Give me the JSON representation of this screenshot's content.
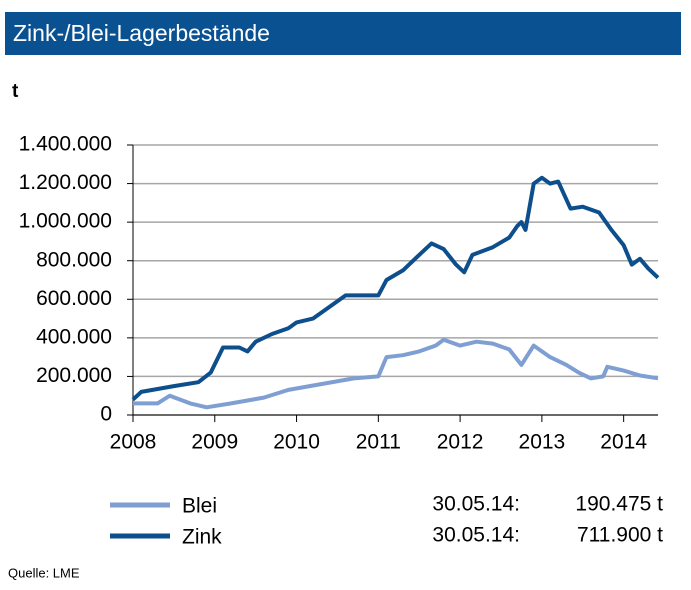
{
  "chart_data": {
    "type": "line",
    "title": "Zink-/Blei-Lagerbestände",
    "y_label": "t",
    "source": "Quelle:  LME",
    "xlim": [
      2008,
      2014.42
    ],
    "xticks": [
      2008,
      2009,
      2010,
      2011,
      2012,
      2013,
      2014
    ],
    "ylim": [
      0,
      1400000
    ],
    "yticks": [
      0,
      {
        "value": 200000,
        "label": "200.000"
      },
      {
        "value": 400000,
        "label": "400.000"
      },
      {
        "value": 600000,
        "label": "600.000"
      },
      {
        "value": 800000,
        "label": "800.000"
      },
      {
        "value": 1000000,
        "label": "1.000.000"
      },
      {
        "value": 1200000,
        "label": "1.200.000"
      },
      {
        "value": 1400000,
        "label": "1.400.000"
      }
    ],
    "grid": true,
    "series": [
      {
        "name": "Blei",
        "color": "#7f9fd3",
        "legend_date": "30.05.14:",
        "legend_value": "190.475 t",
        "x": [
          2008.0,
          2008.3,
          2008.45,
          2008.7,
          2008.9,
          2009.2,
          2009.6,
          2009.9,
          2010.3,
          2010.7,
          2011.0,
          2011.1,
          2011.3,
          2011.5,
          2011.7,
          2011.8,
          2012.0,
          2012.2,
          2012.4,
          2012.6,
          2012.75,
          2012.9,
          2013.1,
          2013.3,
          2013.45,
          2013.6,
          2013.75,
          2013.8,
          2014.0,
          2014.2,
          2014.42
        ],
        "values": [
          60000,
          60000,
          100000,
          60000,
          40000,
          60000,
          90000,
          130000,
          160000,
          190000,
          200000,
          300000,
          310000,
          330000,
          360000,
          390000,
          360000,
          380000,
          370000,
          340000,
          260000,
          360000,
          300000,
          260000,
          220000,
          190000,
          200000,
          250000,
          230000,
          205000,
          190475
        ]
      },
      {
        "name": "Zink",
        "color": "#0d4f8c",
        "legend_date": "30.05.14:",
        "legend_value": "711.900 t",
        "x": [
          2008.0,
          2008.1,
          2008.5,
          2008.8,
          2008.95,
          2009.1,
          2009.3,
          2009.4,
          2009.5,
          2009.7,
          2009.9,
          2010.0,
          2010.2,
          2010.4,
          2010.6,
          2011.0,
          2011.1,
          2011.3,
          2011.5,
          2011.65,
          2011.8,
          2011.95,
          2012.05,
          2012.15,
          2012.4,
          2012.6,
          2012.7,
          2012.75,
          2012.8,
          2012.9,
          2013.0,
          2013.1,
          2013.2,
          2013.35,
          2013.5,
          2013.7,
          2013.85,
          2014.0,
          2014.1,
          2014.2,
          2014.3,
          2014.42
        ],
        "values": [
          80000,
          120000,
          150000,
          170000,
          220000,
          350000,
          350000,
          330000,
          380000,
          420000,
          450000,
          480000,
          500000,
          560000,
          620000,
          620000,
          700000,
          750000,
          830000,
          890000,
          860000,
          780000,
          740000,
          830000,
          870000,
          920000,
          980000,
          1000000,
          960000,
          1200000,
          1230000,
          1200000,
          1210000,
          1070000,
          1080000,
          1050000,
          960000,
          880000,
          780000,
          810000,
          760000,
          711900
        ]
      }
    ]
  }
}
